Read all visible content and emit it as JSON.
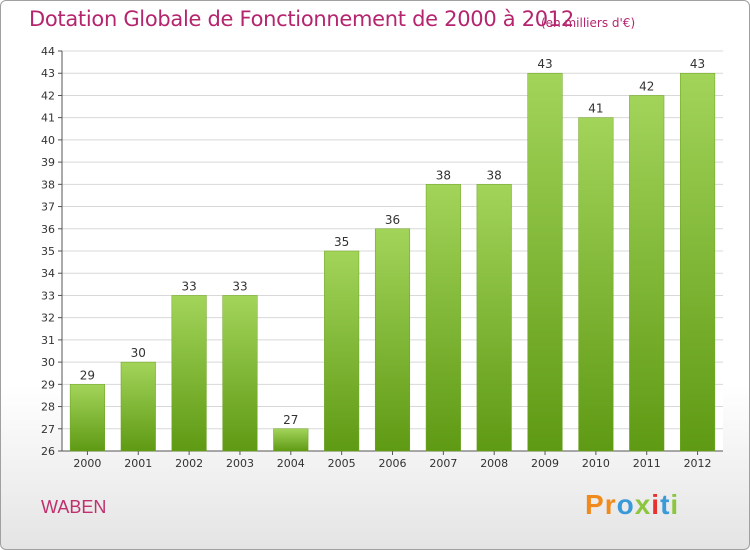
{
  "title": "Dotation Globale de Fonctionnement de 2000 à 2012",
  "unit_label": "(en milliers d'€)",
  "commune": "WABEN",
  "logo": {
    "text": "Proxiti",
    "colors": [
      "#f08a1c",
      "#f08a1c",
      "#3a9ad9",
      "#8cc63f",
      "#e8302e",
      "#3a9ad9",
      "#8cc63f"
    ]
  },
  "colors": {
    "bar_top": "#a2d45a",
    "bar_bottom": "#5f9a14",
    "title": "#b5256e",
    "grid": "#d8d8d8"
  },
  "chart_data": {
    "type": "bar",
    "title": "Dotation Globale de Fonctionnement de 2000 à 2012",
    "xlabel": "",
    "ylabel": "",
    "categories": [
      "2000",
      "2001",
      "2002",
      "2003",
      "2004",
      "2005",
      "2006",
      "2007",
      "2008",
      "2009",
      "2010",
      "2011",
      "2012"
    ],
    "values": [
      29,
      30,
      33,
      33,
      27,
      35,
      36,
      38,
      38,
      43,
      41,
      42,
      43
    ],
    "ylim": [
      26,
      44
    ],
    "yticks": [
      26,
      27,
      28,
      29,
      30,
      31,
      32,
      33,
      34,
      35,
      36,
      37,
      38,
      39,
      40,
      41,
      42,
      43,
      44
    ],
    "grid": true,
    "data_labels": true
  }
}
